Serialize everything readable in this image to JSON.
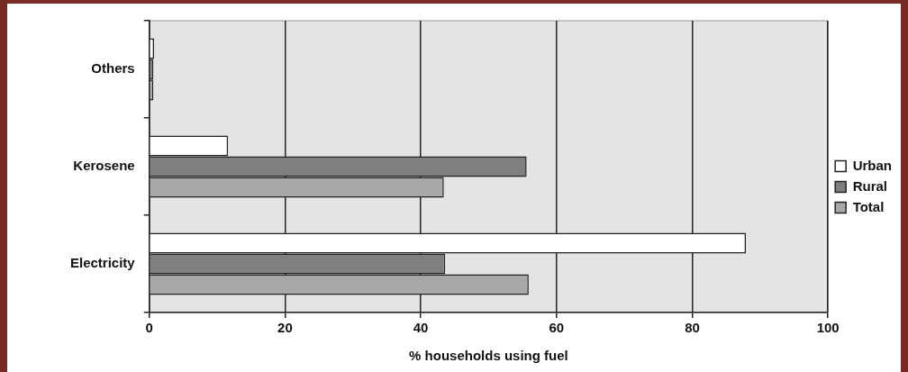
{
  "chart_data": {
    "type": "bar",
    "orientation": "horizontal",
    "categories": [
      "Others",
      "Kerosene",
      "Electricity"
    ],
    "series": [
      {
        "name": "Urban",
        "color": "#ffffff",
        "values": [
          0.7,
          11.6,
          87.9
        ]
      },
      {
        "name": "Rural",
        "color": "#7f7f82",
        "values": [
          0.6,
          55.6,
          43.6
        ]
      },
      {
        "name": "Total",
        "color": "#a8a8ab",
        "values": [
          0.6,
          43.4,
          55.9
        ]
      }
    ],
    "xlabel": "% households using fuel",
    "xlim": [
      0,
      100
    ],
    "xticks": [
      0,
      20,
      40,
      60,
      80,
      100
    ],
    "grid": "x",
    "legend": "right"
  }
}
